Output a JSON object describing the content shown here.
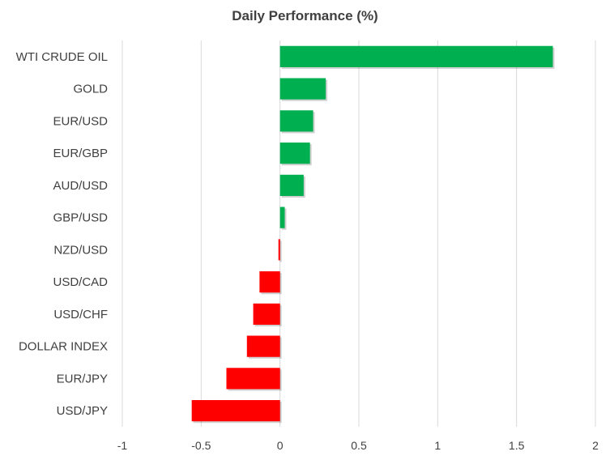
{
  "chart_data": {
    "type": "bar",
    "orientation": "horizontal",
    "title": "Daily Performance  (%)",
    "categories": [
      "WTI CRUDE OIL",
      "GOLD",
      "EUR/USD",
      "EUR/GBP",
      "AUD/USD",
      "GBP/USD",
      "NZD/USD",
      "USD/CAD",
      "USD/CHF",
      "DOLLAR INDEX",
      "EUR/JPY",
      "USD/JPY"
    ],
    "values": [
      1.73,
      0.29,
      0.21,
      0.19,
      0.15,
      0.03,
      -0.01,
      -0.13,
      -0.17,
      -0.21,
      -0.34,
      -0.56
    ],
    "xlim": [
      -1,
      2
    ],
    "xticks": [
      "-1",
      "-0.5",
      "0",
      "0.5",
      "1",
      "1.5",
      "2"
    ],
    "grid": "vertical",
    "colors": {
      "positive": "#00b050",
      "negative": "#ff0000",
      "grid": "#d9d9d9"
    }
  }
}
